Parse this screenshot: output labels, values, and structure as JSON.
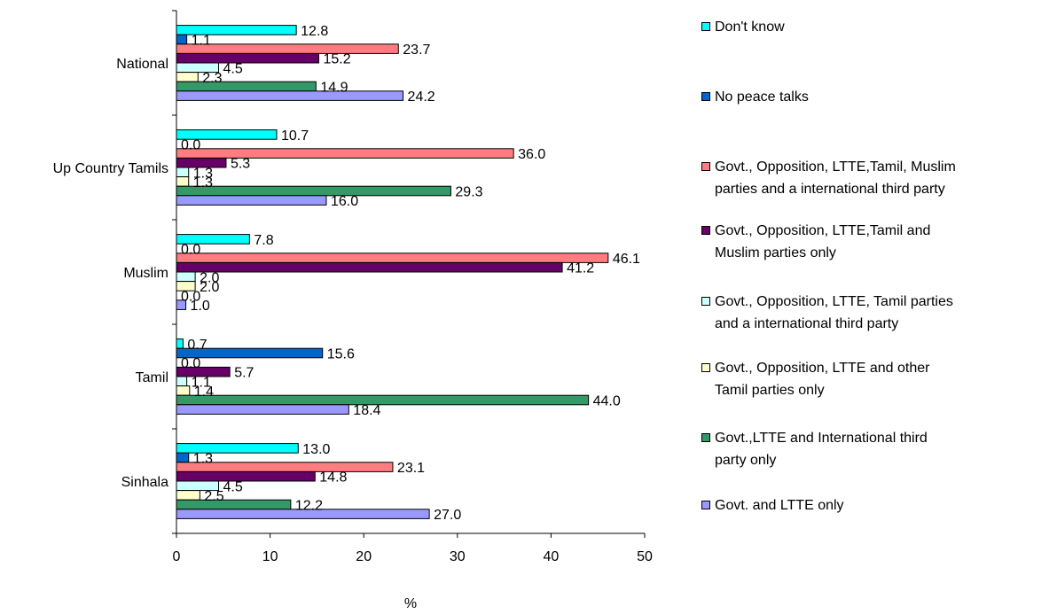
{
  "chart_data": {
    "type": "bar",
    "orientation": "horizontal",
    "xlabel": "%",
    "xlim": [
      0,
      50
    ],
    "xticks": [
      "0",
      "10",
      "20",
      "30",
      "40",
      "50"
    ],
    "categories": [
      "National",
      "Up Country Tamils",
      "Muslim",
      "Tamil",
      "Sinhala"
    ],
    "series": [
      {
        "name": "Don't know",
        "color": "#00ffff",
        "values": [
          12.8,
          10.7,
          7.8,
          0.7,
          13.0
        ],
        "labels": [
          "12.8",
          "10.7",
          "7.8",
          "0.7",
          "13.0"
        ]
      },
      {
        "name": "No peace talks",
        "color": "#0066cc",
        "values": [
          1.1,
          0.0,
          0.0,
          15.6,
          1.3
        ],
        "labels": [
          "1.1",
          "0.0",
          "0.0",
          "15.6",
          "1.3"
        ]
      },
      {
        "name": "Govt., Opposition, LTTE,Tamil, Muslim\nparties and a international third party",
        "color": "#ff7c80",
        "values": [
          23.7,
          36.0,
          46.1,
          0.0,
          23.1
        ],
        "labels": [
          "23.7",
          "36.0",
          "46.1",
          "0.0",
          "23.1"
        ]
      },
      {
        "name": "Govt., Opposition, LTTE,Tamil and\nMuslim parties only",
        "color": "#660066",
        "values": [
          15.2,
          5.3,
          41.2,
          5.7,
          14.8
        ],
        "labels": [
          "15.2",
          "5.3",
          "41.2",
          "5.7",
          "14.8"
        ]
      },
      {
        "name": "Govt., Opposition, LTTE, Tamil parties\nand a international third party",
        "color": "#ccffff",
        "values": [
          4.5,
          1.3,
          2.0,
          1.1,
          4.5
        ],
        "labels": [
          "4.5",
          "1.3",
          "2.0",
          "1.1",
          "4.5"
        ]
      },
      {
        "name": "Govt., Opposition, LTTE and other\nTamil parties only",
        "color": "#ffffcc",
        "values": [
          2.3,
          1.3,
          2.0,
          1.4,
          2.5
        ],
        "labels": [
          "2.3",
          "1.3",
          "2.0",
          "1.4",
          "2.5"
        ]
      },
      {
        "name": "Govt.,LTTE and International third\nparty only",
        "color": "#339966",
        "values": [
          14.9,
          29.3,
          0.0,
          44.0,
          12.2
        ],
        "labels": [
          "14.9",
          "29.3",
          "0.0",
          "44.0",
          "12.2"
        ]
      },
      {
        "name": "Govt. and LTTE only",
        "color": "#9999ff",
        "values": [
          24.2,
          16.0,
          1.0,
          18.4,
          27.0
        ],
        "labels": [
          "24.2",
          "16.0",
          "1.0",
          "18.4",
          "27.0"
        ]
      }
    ],
    "grid": false,
    "legend": "right"
  }
}
